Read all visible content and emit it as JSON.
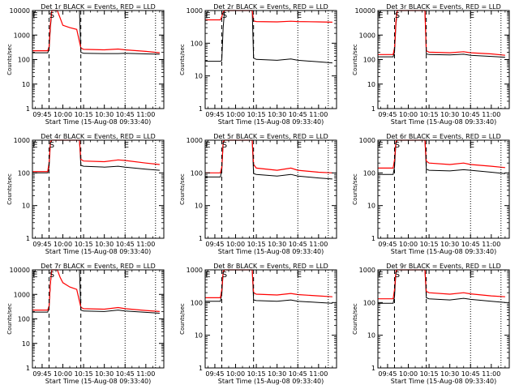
{
  "figure": {
    "xlabel": "Start Time (15-Aug-08 09:33:40)",
    "ylabel": "Counts/sec",
    "x_tick_labels": [
      "09:45",
      "10:00",
      "10:15",
      "10:30",
      "10:45",
      "11:00"
    ],
    "x_tick_times": [
      "09:45",
      "10:00",
      "10:15",
      "10:30",
      "10:45",
      "11:00"
    ],
    "xlim": [
      "09:38",
      "11:13"
    ],
    "y_tick_labels_5": [
      "1",
      "10",
      "100",
      "1000",
      "10000"
    ],
    "y_tick_labels_4": [
      "1",
      "10",
      "100",
      "1000"
    ],
    "series_colors": {
      "events": "#000000",
      "lld": "#ff0000"
    },
    "yscale": "log",
    "markers": {
      "E_left": "09:40",
      "S": "09:52",
      "dash_1": "09:50",
      "dash_2": "10:13",
      "dot_1": "10:45",
      "dot_2": "11:07",
      "E_right": "10:46"
    }
  },
  "chart_data": [
    {
      "type": "line",
      "title": "Det 1r BLACK = Events, RED = LLD",
      "ylim": [
        1,
        10000
      ],
      "yscale": "log",
      "xlabel": "Start Time (15-Aug-08 09:33:40)",
      "ylabel": "Counts/sec",
      "annotations": [
        "E",
        "S",
        "E"
      ],
      "series": [
        {
          "color": "#000000",
          "x": [
            "09:38",
            "09:49",
            "09:50",
            "09:51",
            "09:52",
            "10:12",
            "10:13",
            "10:15",
            "10:30",
            "10:40",
            "10:45",
            "11:00",
            "11:10"
          ],
          "y": [
            190,
            190,
            250,
            2000,
            10000,
            10000,
            200,
            180,
            175,
            175,
            180,
            170,
            165
          ]
        },
        {
          "color": "#ff0000",
          "x": [
            "09:38",
            "09:49",
            "09:50",
            "09:51",
            "09:52",
            "09:56",
            "09:58",
            "10:00",
            "10:05",
            "10:10",
            "10:13",
            "10:15",
            "10:30",
            "10:40",
            "10:45",
            "11:00",
            "11:10"
          ],
          "y": [
            230,
            230,
            330,
            3000,
            10000,
            10000,
            5000,
            2500,
            2000,
            1700,
            300,
            260,
            250,
            270,
            250,
            215,
            190
          ]
        }
      ]
    },
    {
      "type": "line",
      "title": "Det 2r BLACK = Events, RED = LLD",
      "ylim": [
        1,
        1000
      ],
      "yscale": "log",
      "xlabel": "Start Time (15-Aug-08 09:33:40)",
      "ylabel": "Counts/sec",
      "annotations": [
        "E",
        "S",
        "E"
      ],
      "series": [
        {
          "color": "#000000",
          "x": [
            "09:38",
            "09:49",
            "09:50",
            "09:51",
            "09:52",
            "10:12",
            "10:13",
            "10:15",
            "10:30",
            "10:40",
            "10:45",
            "11:00",
            "11:10"
          ],
          "y": [
            28,
            28,
            30,
            300,
            1000,
            1000,
            35,
            32,
            30,
            33,
            30,
            27,
            25
          ]
        },
        {
          "color": "#ff0000",
          "x": [
            "09:38",
            "09:49",
            "09:50",
            "09:51",
            "09:52",
            "10:12",
            "10:13",
            "10:15",
            "10:30",
            "10:40",
            "10:45",
            "11:00",
            "11:10"
          ],
          "y": [
            520,
            520,
            650,
            900,
            1000,
            1000,
            480,
            460,
            450,
            470,
            460,
            450,
            440
          ]
        }
      ]
    },
    {
      "type": "line",
      "title": "Det 3r BLACK = Events, RED = LLD",
      "ylim": [
        1,
        10000
      ],
      "yscale": "log",
      "xlabel": "Start Time (15-Aug-08 09:33:40)",
      "ylabel": "Counts/sec",
      "annotations": [
        "E",
        "S",
        "E"
      ],
      "series": [
        {
          "color": "#000000",
          "x": [
            "09:38",
            "09:49",
            "09:50",
            "09:51",
            "09:52",
            "10:12",
            "10:13",
            "10:15",
            "10:30",
            "10:40",
            "10:45",
            "11:00",
            "11:10"
          ],
          "y": [
            130,
            130,
            200,
            2500,
            10000,
            10000,
            170,
            160,
            155,
            165,
            150,
            135,
            125
          ]
        },
        {
          "color": "#ff0000",
          "x": [
            "09:38",
            "09:49",
            "09:50",
            "09:51",
            "09:52",
            "10:12",
            "10:13",
            "10:15",
            "10:30",
            "10:40",
            "10:45",
            "11:00",
            "11:10"
          ],
          "y": [
            160,
            160,
            300,
            3500,
            10000,
            10000,
            230,
            200,
            190,
            210,
            190,
            170,
            150
          ]
        }
      ]
    },
    {
      "type": "line",
      "title": "Det 4r BLACK = Events, RED = LLD",
      "ylim": [
        1,
        1000
      ],
      "yscale": "log",
      "xlabel": "Start Time (15-Aug-08 09:33:40)",
      "ylabel": "Counts/sec",
      "annotations": [
        "E",
        "S",
        "E"
      ],
      "series": [
        {
          "color": "#000000",
          "x": [
            "09:38",
            "09:49",
            "09:50",
            "09:51",
            "09:52",
            "10:12",
            "10:13",
            "10:15",
            "10:30",
            "10:40",
            "10:45",
            "11:00",
            "11:10"
          ],
          "y": [
            100,
            100,
            150,
            800,
            1000,
            1000,
            170,
            160,
            150,
            160,
            150,
            130,
            120
          ]
        },
        {
          "color": "#ff0000",
          "x": [
            "09:38",
            "09:49",
            "09:50",
            "09:51",
            "09:52",
            "10:12",
            "10:13",
            "10:15",
            "10:30",
            "10:40",
            "10:45",
            "11:00",
            "11:10"
          ],
          "y": [
            110,
            110,
            200,
            900,
            1000,
            1000,
            260,
            230,
            220,
            250,
            240,
            200,
            180
          ]
        }
      ]
    },
    {
      "type": "line",
      "title": "Det 5r BLACK = Events, RED = LLD",
      "ylim": [
        1,
        1000
      ],
      "yscale": "log",
      "xlabel": "Start Time (15-Aug-08 09:33:40)",
      "ylabel": "Counts/sec",
      "annotations": [
        "E",
        "S",
        "E"
      ],
      "series": [
        {
          "color": "#000000",
          "x": [
            "09:38",
            "09:49",
            "09:50",
            "09:51",
            "09:52",
            "10:12",
            "10:13",
            "10:15",
            "10:30",
            "10:40",
            "10:45",
            "11:00",
            "11:10"
          ],
          "y": [
            75,
            75,
            120,
            800,
            1000,
            1000,
            95,
            90,
            80,
            90,
            80,
            70,
            65
          ]
        },
        {
          "color": "#ff0000",
          "x": [
            "09:38",
            "09:49",
            "09:50",
            "09:51",
            "09:52",
            "10:12",
            "10:13",
            "10:15",
            "10:30",
            "10:40",
            "10:45",
            "11:00",
            "11:10"
          ],
          "y": [
            100,
            100,
            150,
            900,
            1000,
            1000,
            180,
            140,
            120,
            140,
            120,
            105,
            100
          ]
        }
      ]
    },
    {
      "type": "line",
      "title": "Det 6r BLACK = Events, RED = LLD",
      "ylim": [
        1,
        1000
      ],
      "yscale": "log",
      "xlabel": "Start Time (15-Aug-08 09:33:40)",
      "ylabel": "Counts/sec",
      "annotations": [
        "E",
        "S",
        "E"
      ],
      "series": [
        {
          "color": "#000000",
          "x": [
            "09:38",
            "09:49",
            "09:50",
            "09:51",
            "09:52",
            "10:12",
            "10:13",
            "10:15",
            "10:30",
            "10:40",
            "10:45",
            "11:00",
            "11:10"
          ],
          "y": [
            90,
            90,
            150,
            800,
            1000,
            1000,
            130,
            120,
            115,
            125,
            120,
            105,
            95
          ]
        },
        {
          "color": "#ff0000",
          "x": [
            "09:38",
            "09:49",
            "09:50",
            "09:51",
            "09:52",
            "10:12",
            "10:13",
            "10:15",
            "10:30",
            "10:40",
            "10:45",
            "11:00",
            "11:10"
          ],
          "y": [
            140,
            140,
            250,
            900,
            1000,
            1000,
            230,
            200,
            180,
            200,
            180,
            160,
            145
          ]
        }
      ]
    },
    {
      "type": "line",
      "title": "Det 7r BLACK = Events, RED = LLD",
      "ylim": [
        1,
        10000
      ],
      "yscale": "log",
      "xlabel": "Start Time (15-Aug-08 09:33:40)",
      "ylabel": "Counts/sec",
      "annotations": [
        "E",
        "S",
        "E"
      ],
      "series": [
        {
          "color": "#000000",
          "x": [
            "09:38",
            "09:49",
            "09:50",
            "09:51",
            "09:52",
            "10:12",
            "10:13",
            "10:15",
            "10:30",
            "10:40",
            "10:45",
            "11:00",
            "11:10"
          ],
          "y": [
            190,
            190,
            280,
            3000,
            10000,
            10000,
            230,
            210,
            200,
            230,
            210,
            185,
            170
          ]
        },
        {
          "color": "#ff0000",
          "x": [
            "09:38",
            "09:49",
            "09:50",
            "09:51",
            "09:52",
            "09:56",
            "09:58",
            "10:00",
            "10:05",
            "10:10",
            "10:13",
            "10:15",
            "10:30",
            "10:40",
            "10:45",
            "11:00",
            "11:10"
          ],
          "y": [
            230,
            230,
            330,
            3000,
            10000,
            10000,
            5000,
            3000,
            2000,
            1600,
            300,
            260,
            250,
            290,
            260,
            220,
            200
          ]
        }
      ]
    },
    {
      "type": "line",
      "title": "Det 8r BLACK = Events, RED = LLD",
      "ylim": [
        1,
        1000
      ],
      "yscale": "log",
      "xlabel": "Start Time (15-Aug-08 09:33:40)",
      "ylabel": "Counts/sec",
      "annotations": [
        "E",
        "S",
        "E"
      ],
      "series": [
        {
          "color": "#000000",
          "x": [
            "09:38",
            "09:49",
            "09:50",
            "09:51",
            "09:52",
            "10:12",
            "10:13",
            "10:15",
            "10:30",
            "10:40",
            "10:45",
            "11:00",
            "11:10"
          ],
          "y": [
            110,
            110,
            180,
            800,
            1000,
            1000,
            120,
            115,
            110,
            120,
            110,
            100,
            95
          ]
        },
        {
          "color": "#ff0000",
          "x": [
            "09:38",
            "09:49",
            "09:50",
            "09:51",
            "09:52",
            "10:12",
            "10:13",
            "10:15",
            "10:30",
            "10:40",
            "10:45",
            "11:00",
            "11:10"
          ],
          "y": [
            140,
            140,
            250,
            900,
            1000,
            1000,
            200,
            180,
            170,
            190,
            175,
            160,
            150
          ]
        }
      ]
    },
    {
      "type": "line",
      "title": "Det 9r BLACK = Events, RED = LLD",
      "ylim": [
        1,
        1000
      ],
      "yscale": "log",
      "xlabel": "Start Time (15-Aug-08 09:33:40)",
      "ylabel": "Counts/sec",
      "annotations": [
        "E",
        "S",
        "E"
      ],
      "series": [
        {
          "color": "#000000",
          "x": [
            "09:38",
            "09:49",
            "09:50",
            "09:51",
            "09:52",
            "10:12",
            "10:13",
            "10:15",
            "10:30",
            "10:40",
            "10:45",
            "11:00",
            "11:10"
          ],
          "y": [
            95,
            95,
            150,
            800,
            1000,
            1000,
            140,
            130,
            120,
            135,
            125,
            110,
            100
          ]
        },
        {
          "color": "#ff0000",
          "x": [
            "09:38",
            "09:49",
            "09:50",
            "09:51",
            "09:52",
            "10:12",
            "10:13",
            "10:15",
            "10:30",
            "10:40",
            "10:45",
            "11:00",
            "11:10"
          ],
          "y": [
            130,
            130,
            250,
            900,
            1000,
            1000,
            220,
            200,
            180,
            200,
            185,
            160,
            150
          ]
        }
      ]
    }
  ]
}
